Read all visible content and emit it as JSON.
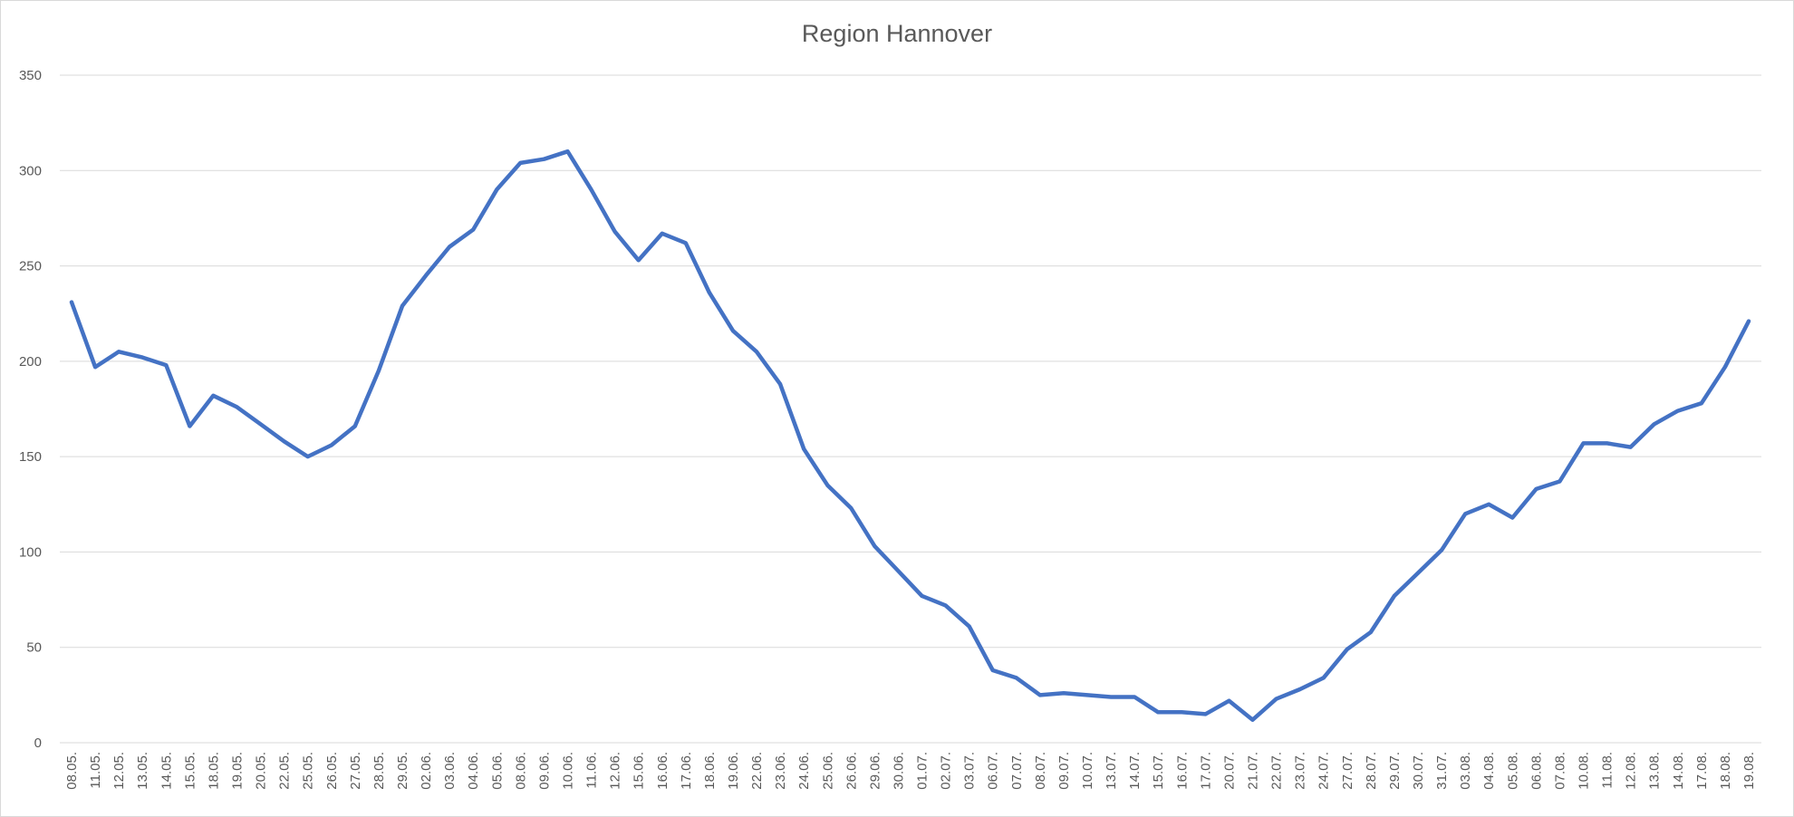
{
  "chart_data": {
    "type": "line",
    "title": "Region Hannover",
    "xlabel": "",
    "ylabel": "",
    "ylim": [
      0,
      350
    ],
    "yticks": [
      0,
      50,
      100,
      150,
      200,
      250,
      300,
      350
    ],
    "grid": true,
    "legend": "none",
    "line_color": "#4472c4",
    "categories": [
      "08.05.",
      "11.05.",
      "12.05.",
      "13.05.",
      "14.05.",
      "15.05.",
      "18.05.",
      "19.05.",
      "20.05.",
      "22.05.",
      "25.05.",
      "26.05.",
      "27.05.",
      "28.05.",
      "29.05.",
      "02.06.",
      "03.06.",
      "04.06.",
      "05.06.",
      "08.06.",
      "09.06.",
      "10.06.",
      "11.06.",
      "12.06.",
      "15.06.",
      "16.06.",
      "17.06.",
      "18.06.",
      "19.06.",
      "22.06.",
      "23.06.",
      "24.06.",
      "25.06.",
      "26.06.",
      "29.06.",
      "30.06.",
      "01.07.",
      "02.07.",
      "03.07.",
      "06.07.",
      "07.07.",
      "08.07.",
      "09.07.",
      "10.07.",
      "13.07.",
      "14.07.",
      "15.07.",
      "16.07.",
      "17.07.",
      "20.07.",
      "21.07.",
      "22.07.",
      "23.07.",
      "24.07.",
      "27.07.",
      "28.07.",
      "29.07.",
      "30.07.",
      "31.07.",
      "03.08.",
      "04.08.",
      "05.08.",
      "06.08.",
      "07.08.",
      "10.08.",
      "11.08.",
      "12.08.",
      "13.08.",
      "14.08.",
      "17.08.",
      "18.08.",
      "19.08."
    ],
    "values": [
      231,
      197,
      205,
      202,
      198,
      166,
      182,
      176,
      167,
      158,
      150,
      156,
      166,
      195,
      229,
      245,
      260,
      269,
      290,
      304,
      306,
      310,
      290,
      268,
      253,
      267,
      262,
      236,
      216,
      205,
      188,
      154,
      135,
      123,
      103,
      90,
      77,
      72,
      61,
      38,
      34,
      25,
      26,
      25,
      24,
      24,
      16,
      16,
      15,
      22,
      12,
      23,
      28,
      34,
      49,
      58,
      77,
      89,
      101,
      120,
      125,
      118,
      133,
      137,
      157,
      157,
      155,
      167,
      174,
      178,
      197,
      221
    ]
  }
}
